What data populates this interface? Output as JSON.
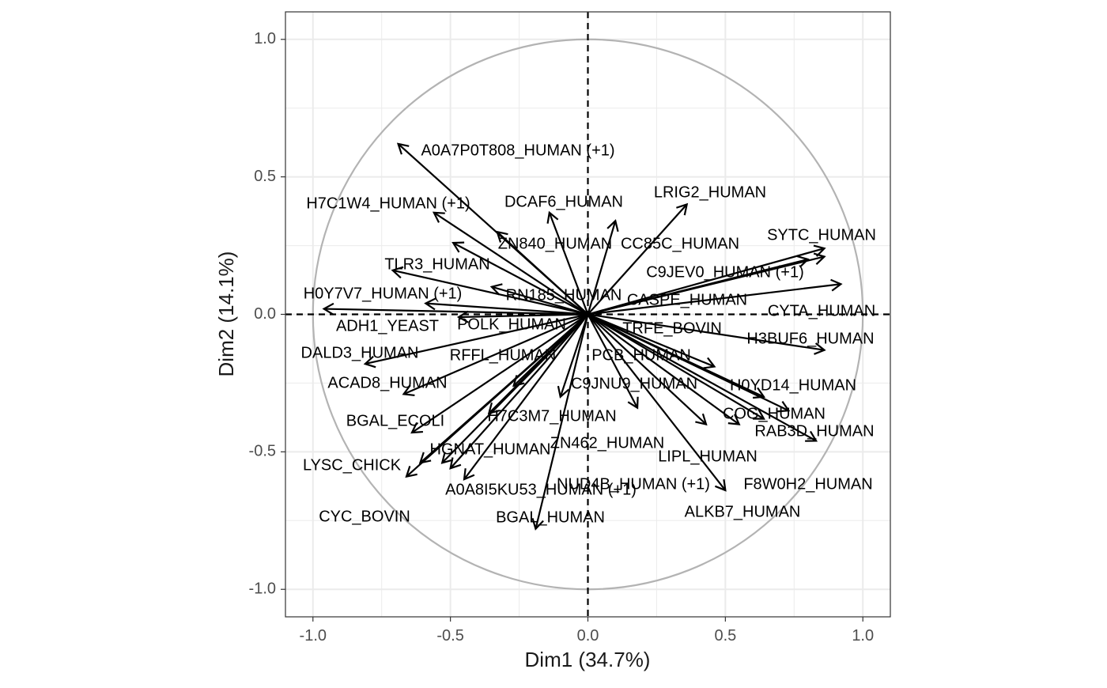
{
  "chart_data": {
    "type": "scatter",
    "subtype": "pca-variable-correlation-circle",
    "xlabel": "Dim1 (34.7%)",
    "ylabel": "Dim2 (14.1%)",
    "xlim": [
      -1.1,
      1.1
    ],
    "ylim": [
      -1.1,
      1.1
    ],
    "x_ticks": [
      -1.0,
      -0.5,
      0.0,
      0.5,
      1.0
    ],
    "x_tick_labels": [
      "-1.0",
      "-0.5",
      "0.0",
      "0.5",
      "1.0"
    ],
    "y_ticks": [
      -1.0,
      -0.5,
      0.0,
      0.5,
      1.0
    ],
    "y_tick_labels": [
      "-1.0",
      "-0.5",
      "0.0",
      "0.5",
      "1.0"
    ],
    "grid": true,
    "unit_circle": true,
    "reference_lines": "dashed at x=0 and y=0",
    "colors": {
      "arrow": "#000000",
      "circle": "#b3b3b3",
      "grid_major": "#ebebeb",
      "panel_border": "#333333",
      "tick_text": "#4d4d4d"
    },
    "variables": [
      {
        "label": "A0A7P0T808_HUMAN (+1)",
        "x": -0.69,
        "y": 0.62
      },
      {
        "label": "H7C1W4_HUMAN (+1)",
        "x": -0.56,
        "y": 0.37
      },
      {
        "label": "DCAF6_HUMAN",
        "x": -0.14,
        "y": 0.37
      },
      {
        "label": "",
        "x": 0.1,
        "y": 0.34
      },
      {
        "label": "LRIG2_HUMAN",
        "x": 0.36,
        "y": 0.4
      },
      {
        "label": "ZN840_HUMAN",
        "x": -0.33,
        "y": 0.3
      },
      {
        "label": "CC85C_HUMAN",
        "x": 0.0,
        "y": 0.0
      },
      {
        "label": "SYTC_HUMAN",
        "x": 0.86,
        "y": 0.24
      },
      {
        "label": "C9JEV0_HUMAN (+1)",
        "x": 0.8,
        "y": 0.2
      },
      {
        "label": "",
        "x": 0.86,
        "y": 0.21
      },
      {
        "label": "TLR3_HUMAN",
        "x": -0.49,
        "y": 0.26
      },
      {
        "label": "H0Y7V7_HUMAN (+1)",
        "x": -0.71,
        "y": 0.16
      },
      {
        "label": "RN185_HUMAN",
        "x": -0.35,
        "y": 0.1
      },
      {
        "label": "CASPE_HUMAN",
        "x": 0.0,
        "y": 0.0
      },
      {
        "label": "CYTA_HUMAN",
        "x": 0.92,
        "y": 0.11
      },
      {
        "label": "",
        "x": -0.96,
        "y": 0.02
      },
      {
        "label": "ADH1_YEAST",
        "x": -0.59,
        "y": 0.04
      },
      {
        "label": "POLK_HUMAN",
        "x": -0.47,
        "y": -0.01
      },
      {
        "label": "TRFE_BOVIN",
        "x": 0.0,
        "y": 0.0
      },
      {
        "label": "H3BUF6_HUMAN",
        "x": 0.86,
        "y": -0.13
      },
      {
        "label": "DALD3_HUMAN",
        "x": -0.81,
        "y": -0.18
      },
      {
        "label": "RFFL_HUMAN",
        "x": -0.27,
        "y": -0.26
      },
      {
        "label": "PCB_HUMAN",
        "x": 0.46,
        "y": -0.19
      },
      {
        "label": "ACAD8_HUMAN",
        "x": -0.67,
        "y": -0.29
      },
      {
        "label": "C9JNU9_HUMAN",
        "x": -0.1,
        "y": -0.3
      },
      {
        "label": "",
        "x": 0.18,
        "y": -0.34
      },
      {
        "label": "H0YD14_HUMAN",
        "x": 0.64,
        "y": -0.3
      },
      {
        "label": "",
        "x": 0.73,
        "y": -0.35
      },
      {
        "label": "BGAL_ECOLI",
        "x": -0.64,
        "y": -0.43
      },
      {
        "label": "H7C3M7_HUMAN",
        "x": -0.36,
        "y": -0.36
      },
      {
        "label": "COG_HUMAN",
        "x": 0.64,
        "y": -0.38
      },
      {
        "label": "",
        "x": 0.55,
        "y": -0.4
      },
      {
        "label": "RAB3D_HUMAN",
        "x": 0.83,
        "y": -0.46
      },
      {
        "label": "ZN462_HUMAN",
        "x": 0.0,
        "y": 0.0
      },
      {
        "label": "HGNAT_HUMAN",
        "x": -0.53,
        "y": -0.54
      },
      {
        "label": "",
        "x": -0.5,
        "y": -0.56
      },
      {
        "label": "LIPL_HUMAN",
        "x": 0.43,
        "y": -0.4
      },
      {
        "label": "LYSC_CHICK",
        "x": -0.66,
        "y": -0.59
      },
      {
        "label": "A0A8I5KU53_HUMAN (+1)",
        "x": -0.45,
        "y": -0.6
      },
      {
        "label": "NUD4B_HUMAN (+1)",
        "x": 0.0,
        "y": 0.0
      },
      {
        "label": "F8W0H2_HUMAN",
        "x": 0.0,
        "y": 0.0
      },
      {
        "label": "ALKB7_HUMAN",
        "x": 0.5,
        "y": -0.64
      },
      {
        "label": "CYC_BOVIN",
        "x": 0.0,
        "y": 0.0
      },
      {
        "label": "",
        "x": -0.61,
        "y": -0.54
      },
      {
        "label": "BGAL_HUMAN",
        "x": -0.19,
        "y": -0.78
      }
    ]
  }
}
